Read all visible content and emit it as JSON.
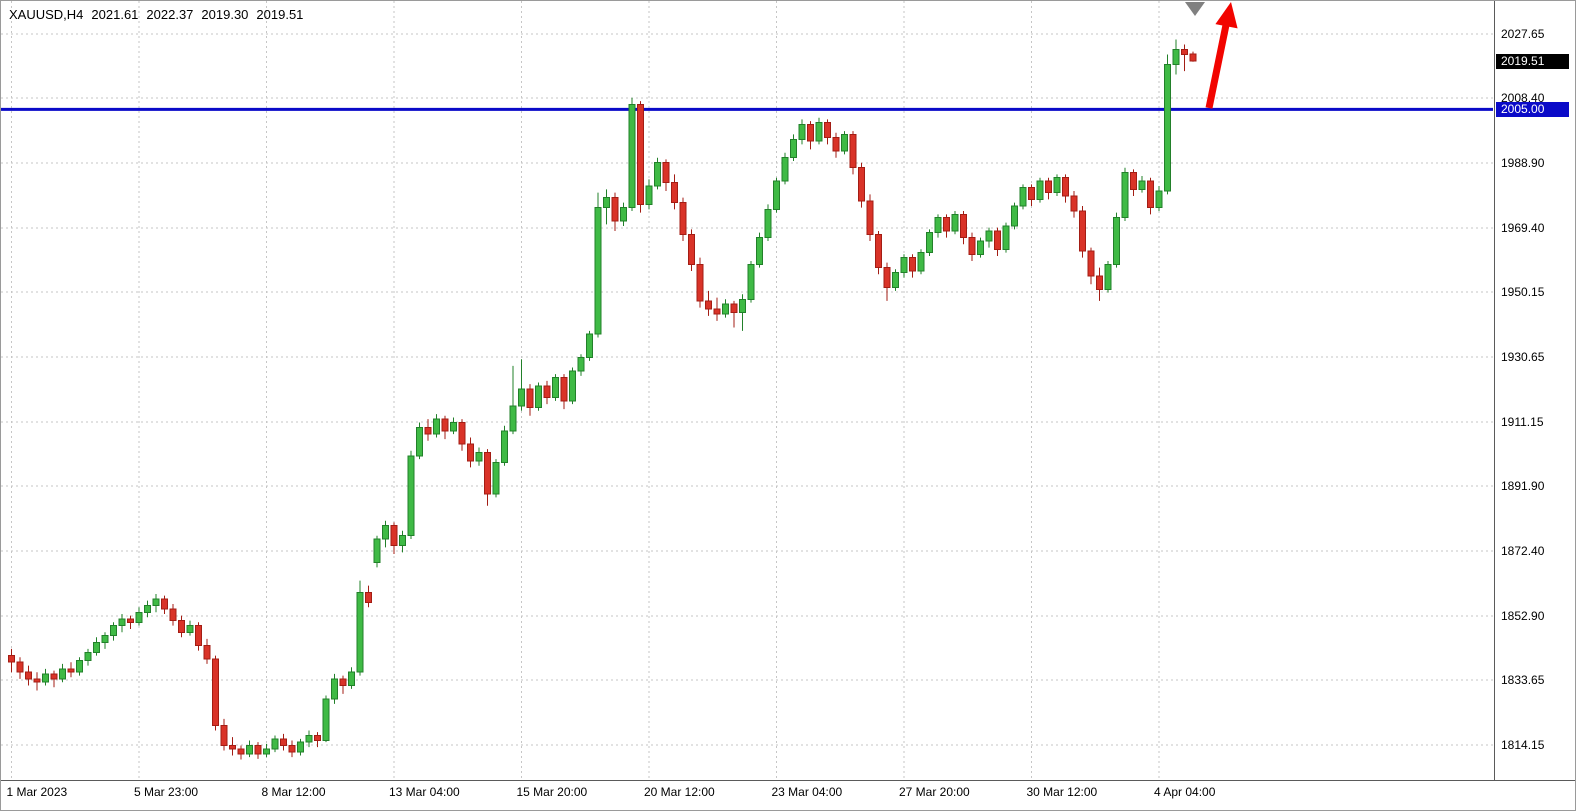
{
  "header": {
    "symbol_period": "XAUUSD,H4",
    "open": "2021.61",
    "high": "2022.37",
    "low": "2019.30",
    "close": "2019.51"
  },
  "price_axis": {
    "current_price_label": "2019.51",
    "hline_price_label": "2005.00"
  },
  "chart_data": {
    "type": "candlestick",
    "symbol": "XAUUSD",
    "timeframe": "H4",
    "title": "XAUUSD,H4 2021.61 2022.37 2019.30 2019.51",
    "current_price": 2019.51,
    "hline": {
      "price": 2005.0,
      "label": "2005.00"
    },
    "ylim": [
      1809,
      2031
    ],
    "grid": "dashed",
    "y_ticks": [
      2027.65,
      2008.4,
      1988.9,
      1969.4,
      1950.15,
      1930.65,
      1911.15,
      1891.9,
      1872.4,
      1852.9,
      1833.65,
      1814.15
    ],
    "x_labels": [
      {
        "label": "1 Mar 2023",
        "candle": 0
      },
      {
        "label": "5 Mar 23:00",
        "candle": 15
      },
      {
        "label": "8 Mar 12:00",
        "candle": 30
      },
      {
        "label": "13 Mar 04:00",
        "candle": 45
      },
      {
        "label": "15 Mar 20:00",
        "candle": 60
      },
      {
        "label": "20 Mar 12:00",
        "candle": 75
      },
      {
        "label": "23 Mar 04:00",
        "candle": 90
      },
      {
        "label": "27 Mar 20:00",
        "candle": 105
      },
      {
        "label": "30 Mar 12:00",
        "candle": 120
      },
      {
        "label": "4 Apr 04:00",
        "candle": 135
      }
    ],
    "candles_format": [
      "open",
      "high",
      "low",
      "close"
    ],
    "candles": [
      [
        1841,
        1843,
        1836,
        1839
      ],
      [
        1839,
        1840.5,
        1834,
        1836
      ],
      [
        1836,
        1838,
        1832,
        1834
      ],
      [
        1834,
        1836,
        1830.5,
        1833
      ],
      [
        1833,
        1837,
        1832,
        1835.5
      ],
      [
        1835.5,
        1836.5,
        1831.5,
        1834
      ],
      [
        1834,
        1838.5,
        1833,
        1837
      ],
      [
        1837,
        1839,
        1834.5,
        1836
      ],
      [
        1836,
        1840.5,
        1835,
        1839.5
      ],
      [
        1839.5,
        1843,
        1838,
        1842
      ],
      [
        1842,
        1846.5,
        1841,
        1845
      ],
      [
        1845,
        1848,
        1843,
        1847
      ],
      [
        1847,
        1851,
        1845.5,
        1850
      ],
      [
        1850,
        1853.5,
        1848,
        1852
      ],
      [
        1852,
        1853,
        1849,
        1851
      ],
      [
        1851,
        1855.5,
        1850,
        1854
      ],
      [
        1854,
        1857.5,
        1852.5,
        1856
      ],
      [
        1856,
        1859.5,
        1854,
        1858
      ],
      [
        1858,
        1859,
        1853.5,
        1855
      ],
      [
        1855,
        1856.5,
        1850,
        1851.5
      ],
      [
        1851.5,
        1853,
        1846.5,
        1848
      ],
      [
        1848,
        1851.5,
        1847,
        1850
      ],
      [
        1850,
        1851,
        1842.5,
        1844
      ],
      [
        1844,
        1846,
        1838.5,
        1840
      ],
      [
        1840,
        1841,
        1818.5,
        1820
      ],
      [
        1820,
        1822,
        1812.5,
        1814
      ],
      [
        1814,
        1816.5,
        1811,
        1813
      ],
      [
        1813,
        1814,
        1809.8,
        1811.5
      ],
      [
        1811.5,
        1815.5,
        1810.5,
        1814
      ],
      [
        1814,
        1815,
        1810,
        1811.5
      ],
      [
        1811.5,
        1814.5,
        1810.5,
        1813
      ],
      [
        1813,
        1817,
        1812,
        1816
      ],
      [
        1816,
        1817.5,
        1812.5,
        1814
      ],
      [
        1814,
        1815.5,
        1810.5,
        1812
      ],
      [
        1812,
        1816,
        1811,
        1815
      ],
      [
        1815,
        1818.5,
        1813.5,
        1817
      ],
      [
        1817,
        1818,
        1813.5,
        1815.5
      ],
      [
        1815.5,
        1829,
        1815,
        1828
      ],
      [
        1828,
        1835.5,
        1826.5,
        1834
      ],
      [
        1834,
        1835,
        1829.5,
        1832
      ],
      [
        1832,
        1837.5,
        1831,
        1836
      ],
      [
        1836,
        1863.5,
        1835,
        1860
      ],
      [
        1860,
        1862,
        1855.5,
        1857
      ],
      [
        1869,
        1877,
        1867.5,
        1876
      ],
      [
        1876,
        1881.5,
        1873.5,
        1880
      ],
      [
        1880,
        1881,
        1871.5,
        1874
      ],
      [
        1874,
        1878.5,
        1872,
        1877
      ],
      [
        1877,
        1902.5,
        1876,
        1901
      ],
      [
        1901,
        1911,
        1900,
        1909.5
      ],
      [
        1909.5,
        1912,
        1905.5,
        1907.5
      ],
      [
        1907.5,
        1913.5,
        1906.5,
        1912
      ],
      [
        1912,
        1913,
        1906,
        1908.5
      ],
      [
        1908.5,
        1912.5,
        1907.5,
        1911
      ],
      [
        1911,
        1912,
        1902.5,
        1904.5
      ],
      [
        1904.5,
        1906.5,
        1897.5,
        1899.5
      ],
      [
        1899.5,
        1903.5,
        1898,
        1902
      ],
      [
        1902,
        1903,
        1886,
        1889.5
      ],
      [
        1889.5,
        1900,
        1888.5,
        1899
      ],
      [
        1899,
        1910,
        1898,
        1908.5
      ],
      [
        1908.5,
        1928,
        1907.5,
        1916
      ],
      [
        1916,
        1930,
        1914.5,
        1921
      ],
      [
        1921,
        1922.5,
        1913,
        1915.5
      ],
      [
        1915.5,
        1923,
        1914.5,
        1922
      ],
      [
        1922,
        1923.5,
        1916.5,
        1918.5
      ],
      [
        1918.5,
        1925.5,
        1917.5,
        1924.5
      ],
      [
        1924.5,
        1925.5,
        1915,
        1917.5
      ],
      [
        1917.5,
        1927.5,
        1916.5,
        1926.5
      ],
      [
        1926.5,
        1931.5,
        1925,
        1930.5
      ],
      [
        1930.5,
        1938.5,
        1929.5,
        1937.5
      ],
      [
        1937.5,
        1980,
        1936.5,
        1975.5
      ],
      [
        1975.5,
        1981,
        1970.5,
        1978.5
      ],
      [
        1978.5,
        1980,
        1968.5,
        1971.5
      ],
      [
        1971.5,
        1977,
        1970,
        1975.5
      ],
      [
        1975.5,
        2008.5,
        1974.5,
        2006.5
      ],
      [
        2006.5,
        2007.5,
        1974,
        1976.5
      ],
      [
        1976.5,
        1984,
        1975,
        1982
      ],
      [
        1982,
        1990.5,
        1981,
        1989
      ],
      [
        1989,
        1990,
        1980.5,
        1983
      ],
      [
        1983,
        1985.5,
        1975,
        1977
      ],
      [
        1977,
        1978.5,
        1965.5,
        1967.5
      ],
      [
        1967.5,
        1969,
        1956.5,
        1958.5
      ],
      [
        1958.5,
        1960.5,
        1945.5,
        1947.5
      ],
      [
        1947.5,
        1950.5,
        1943,
        1945
      ],
      [
        1945,
        1948.5,
        1941.5,
        1943.5
      ],
      [
        1943.5,
        1948,
        1942.5,
        1946.5
      ],
      [
        1946.5,
        1947.5,
        1939.5,
        1944
      ],
      [
        1944,
        1949.5,
        1938.5,
        1948
      ],
      [
        1948,
        1959.5,
        1947,
        1958.5
      ],
      [
        1958.5,
        1968,
        1957.5,
        1966.5
      ],
      [
        1966.5,
        1976.5,
        1965.5,
        1975
      ],
      [
        1975,
        1984.5,
        1974,
        1983.5
      ],
      [
        1983.5,
        1992,
        1982.5,
        1990.5
      ],
      [
        1990.5,
        1997.5,
        1989.5,
        1996
      ],
      [
        1996,
        2002,
        1994.5,
        2000.5
      ],
      [
        2000.5,
        2001.5,
        1993,
        1995.5
      ],
      [
        1995.5,
        2002.5,
        1994.5,
        2001
      ],
      [
        2001,
        2002,
        1994.5,
        1996.5
      ],
      [
        1996.5,
        1998,
        1990.5,
        1992.5
      ],
      [
        1992.5,
        1998.5,
        1991.5,
        1997.5
      ],
      [
        1997.5,
        1998.5,
        1985.5,
        1987.5
      ],
      [
        1987.5,
        1989,
        1975.5,
        1977.5
      ],
      [
        1977.5,
        1979.5,
        1965.5,
        1967.5
      ],
      [
        1967.5,
        1968.5,
        1955.5,
        1957.5
      ],
      [
        1957.5,
        1959,
        1947.5,
        1951.5
      ],
      [
        1951.5,
        1957,
        1950.5,
        1956
      ],
      [
        1956,
        1961.5,
        1954.5,
        1960.5
      ],
      [
        1960.5,
        1961.5,
        1954.5,
        1956.5
      ],
      [
        1956.5,
        1963,
        1955.5,
        1962
      ],
      [
        1962,
        1969,
        1961,
        1968
      ],
      [
        1968,
        1973.5,
        1966.5,
        1972.5
      ],
      [
        1972.5,
        1973.5,
        1966.5,
        1968.5
      ],
      [
        1968.5,
        1974.5,
        1967.5,
        1973.5
      ],
      [
        1973.5,
        1974.5,
        1964.5,
        1966.5
      ],
      [
        1966.5,
        1968,
        1959.5,
        1961.5
      ],
      [
        1961.5,
        1966.5,
        1960.5,
        1965.5
      ],
      [
        1965.5,
        1969.5,
        1963.5,
        1968.5
      ],
      [
        1968.5,
        1969.5,
        1961,
        1963
      ],
      [
        1963,
        1971,
        1962,
        1970
      ],
      [
        1970,
        1977,
        1969,
        1976
      ],
      [
        1976,
        1982.5,
        1975,
        1981.5
      ],
      [
        1981.5,
        1982.5,
        1976,
        1978
      ],
      [
        1978,
        1984.5,
        1977,
        1983.5
      ],
      [
        1983.5,
        1984.5,
        1978,
        1980
      ],
      [
        1980,
        1985.5,
        1979,
        1984.5
      ],
      [
        1984.5,
        1985.5,
        1977,
        1979
      ],
      [
        1979,
        1980.5,
        1972.5,
        1974.5
      ],
      [
        1974.5,
        1976,
        1960.5,
        1962.5
      ],
      [
        1962.5,
        1963.5,
        1952.5,
        1955
      ],
      [
        1955,
        1957.5,
        1947.5,
        1951
      ],
      [
        1951,
        1959.5,
        1950,
        1958.5
      ],
      [
        1958.5,
        1974,
        1957.5,
        1972.5
      ],
      [
        1972.5,
        1987.5,
        1971.5,
        1986
      ],
      [
        1986,
        1987,
        1979,
        1981
      ],
      [
        1981,
        1985,
        1980,
        1983.5
      ],
      [
        1983.5,
        1984.5,
        1973.5,
        1975.5
      ],
      [
        1975.5,
        1982,
        1974.5,
        1980.5
      ],
      [
        1980.5,
        2021.5,
        1979.5,
        2018.5
      ],
      [
        2018.5,
        2026,
        2015.5,
        2023
      ],
      [
        2023,
        2024.5,
        2016.5,
        2021.5
      ],
      [
        2021.61,
        2022.37,
        2019.3,
        2019.51
      ]
    ],
    "colors": {
      "up": "#3fba45",
      "up_stroke": "#22802a",
      "down": "#d93328",
      "down_stroke": "#a31d14",
      "grid": "#c6c6c6",
      "hline": "#0a0ac8",
      "arrow": "#f20400",
      "marker": "#808080",
      "current_tag_bg": "#000000",
      "hline_tag_bg": "#0a0ac8"
    },
    "annotations": [
      {
        "name": "red-up-arrow",
        "shape": "arrow-up",
        "color": "#f20400"
      },
      {
        "name": "gray-down-marker",
        "shape": "triangle-down",
        "color": "#808080"
      }
    ],
    "legend_position": "none"
  }
}
